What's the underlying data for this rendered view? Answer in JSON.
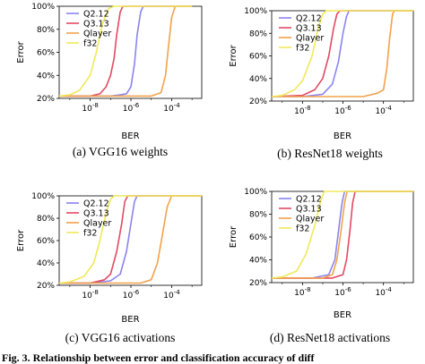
{
  "chart_data": [
    {
      "type": "line",
      "xlabel": "BER",
      "ylabel": "Error",
      "xscale": "log",
      "xlim": [
        3e-10,
        0.003
      ],
      "ylim": [
        0.2,
        1.0
      ],
      "xticks": [
        "10^{-8}",
        "10^{-6}",
        "10^{-4}"
      ],
      "yticks": [
        "20%",
        "40%",
        "60%",
        "80%",
        "100%"
      ],
      "legend_position": "top-left",
      "caption": "(a)  VGG16 weights",
      "series": [
        {
          "name": "Q2.12",
          "color": "#8b84ee",
          "points": [
            [
              3e-10,
              0.22
            ],
            [
              1e-07,
              0.22
            ],
            [
              3e-07,
              0.23
            ],
            [
              6e-07,
              0.24
            ],
            [
              1e-06,
              0.3
            ],
            [
              1.5e-06,
              0.5
            ],
            [
              2e-06,
              0.75
            ],
            [
              3e-06,
              0.95
            ],
            [
              4e-06,
              1.0
            ],
            [
              0.001,
              1.0
            ]
          ]
        },
        {
          "name": "Q3.13",
          "color": "#e24a62",
          "points": [
            [
              3e-10,
              0.22
            ],
            [
              1e-08,
              0.22
            ],
            [
              3e-08,
              0.24
            ],
            [
              6e-08,
              0.3
            ],
            [
              1e-07,
              0.4
            ],
            [
              1.5e-07,
              0.55
            ],
            [
              2e-07,
              0.75
            ],
            [
              3e-07,
              0.95
            ],
            [
              4e-07,
              1.0
            ],
            [
              0.001,
              1.0
            ]
          ]
        },
        {
          "name": "Qlayer",
          "color": "#f2a24c",
          "points": [
            [
              3e-10,
              0.22
            ],
            [
              1e-05,
              0.22
            ],
            [
              3e-05,
              0.25
            ],
            [
              5e-05,
              0.4
            ],
            [
              7e-05,
              0.65
            ],
            [
              0.0001,
              0.9
            ],
            [
              0.00015,
              1.0
            ],
            [
              0.001,
              1.0
            ]
          ]
        },
        {
          "name": "f32",
          "color": "#f0e95a",
          "points": [
            [
              3e-10,
              0.22
            ],
            [
              1e-09,
              0.23
            ],
            [
              3e-09,
              0.27
            ],
            [
              1e-08,
              0.4
            ],
            [
              2e-08,
              0.6
            ],
            [
              4e-08,
              0.85
            ],
            [
              8e-08,
              0.98
            ],
            [
              1.5e-07,
              1.0
            ],
            [
              0.001,
              1.0
            ]
          ]
        }
      ]
    },
    {
      "type": "line",
      "xlabel": "BER",
      "ylabel": "Error",
      "xscale": "log",
      "xlim": [
        3e-10,
        0.003
      ],
      "ylim": [
        0.2,
        1.0
      ],
      "xticks": [
        "10^{-8}",
        "10^{-6}",
        "10^{-4}"
      ],
      "yticks": [
        "20%",
        "40%",
        "60%",
        "80%",
        "100%"
      ],
      "legend_position": "top-left",
      "caption": "(b)  ResNet18 weights",
      "series": [
        {
          "name": "Q2.12",
          "color": "#8b84ee",
          "points": [
            [
              3e-10,
              0.24
            ],
            [
              1e-08,
              0.24
            ],
            [
              1e-07,
              0.26
            ],
            [
              3e-07,
              0.35
            ],
            [
              6e-07,
              0.55
            ],
            [
              1e-06,
              0.8
            ],
            [
              1.5e-06,
              0.95
            ],
            [
              2e-06,
              1.0
            ],
            [
              0.003,
              1.0
            ]
          ]
        },
        {
          "name": "Q3.13",
          "color": "#e24a62",
          "points": [
            [
              3e-10,
              0.24
            ],
            [
              1e-08,
              0.25
            ],
            [
              4e-08,
              0.3
            ],
            [
              1e-07,
              0.4
            ],
            [
              2e-07,
              0.6
            ],
            [
              3.5e-07,
              0.85
            ],
            [
              5e-07,
              0.97
            ],
            [
              7e-07,
              1.0
            ],
            [
              0.003,
              1.0
            ]
          ]
        },
        {
          "name": "Qlayer",
          "color": "#f2a24c",
          "points": [
            [
              3e-10,
              0.24
            ],
            [
              1e-05,
              0.24
            ],
            [
              5e-05,
              0.27
            ],
            [
              0.0001,
              0.3
            ],
            [
              0.00015,
              0.5
            ],
            [
              0.0002,
              0.75
            ],
            [
              0.00028,
              0.97
            ],
            [
              0.00035,
              1.0
            ],
            [
              0.003,
              1.0
            ]
          ]
        },
        {
          "name": "f32",
          "color": "#f0e95a",
          "points": [
            [
              3e-10,
              0.24
            ],
            [
              1e-09,
              0.25
            ],
            [
              4e-09,
              0.3
            ],
            [
              1e-08,
              0.38
            ],
            [
              3e-08,
              0.6
            ],
            [
              6e-08,
              0.85
            ],
            [
              1e-07,
              0.97
            ],
            [
              1.5e-07,
              1.0
            ],
            [
              0.003,
              1.0
            ]
          ]
        }
      ]
    },
    {
      "type": "line",
      "xlabel": "BER",
      "ylabel": "Error",
      "xscale": "log",
      "xlim": [
        3e-10,
        0.003
      ],
      "ylim": [
        0.2,
        1.0
      ],
      "xticks": [
        "10^{-8}",
        "10^{-6}",
        "10^{-4}"
      ],
      "yticks": [
        "20%",
        "40%",
        "60%",
        "80%",
        "100%"
      ],
      "legend_position": "top-left",
      "caption": "(c)  VGG16 activations",
      "series": [
        {
          "name": "Q2.12",
          "color": "#8b84ee",
          "points": [
            [
              3e-10,
              0.22
            ],
            [
              1e-08,
              0.22
            ],
            [
              1e-07,
              0.24
            ],
            [
              3e-07,
              0.3
            ],
            [
              6e-07,
              0.5
            ],
            [
              1e-06,
              0.75
            ],
            [
              1.5e-06,
              0.95
            ],
            [
              2e-06,
              1.0
            ],
            [
              0.003,
              1.0
            ]
          ]
        },
        {
          "name": "Q3.13",
          "color": "#e24a62",
          "points": [
            [
              3e-10,
              0.22
            ],
            [
              1e-08,
              0.22
            ],
            [
              5e-08,
              0.25
            ],
            [
              1e-07,
              0.3
            ],
            [
              2e-07,
              0.5
            ],
            [
              3.5e-07,
              0.75
            ],
            [
              5e-07,
              0.95
            ],
            [
              7e-07,
              1.0
            ],
            [
              0.003,
              1.0
            ]
          ]
        },
        {
          "name": "Qlayer",
          "color": "#f2a24c",
          "points": [
            [
              3e-10,
              0.22
            ],
            [
              3e-06,
              0.22
            ],
            [
              1e-05,
              0.25
            ],
            [
              2e-05,
              0.4
            ],
            [
              3.5e-05,
              0.65
            ],
            [
              6e-05,
              0.9
            ],
            [
              0.0001,
              1.0
            ],
            [
              0.003,
              1.0
            ]
          ]
        },
        {
          "name": "f32",
          "color": "#f0e95a",
          "points": [
            [
              3e-10,
              0.22
            ],
            [
              1e-09,
              0.23
            ],
            [
              5e-09,
              0.28
            ],
            [
              1.5e-08,
              0.4
            ],
            [
              3e-08,
              0.6
            ],
            [
              6e-08,
              0.85
            ],
            [
              1e-07,
              0.97
            ],
            [
              1.5e-07,
              1.0
            ],
            [
              0.003,
              1.0
            ]
          ]
        }
      ]
    },
    {
      "type": "line",
      "xlabel": "BER",
      "ylabel": "Error",
      "xscale": "log",
      "xlim": [
        3e-10,
        0.003
      ],
      "ylim": [
        0.2,
        1.0
      ],
      "xticks": [
        "10^{-8}",
        "10^{-6}",
        "10^{-4}"
      ],
      "yticks": [
        "20%",
        "40%",
        "60%",
        "80%",
        "100%"
      ],
      "legend_position": "top-left",
      "caption": "(d)  ResNet18 activations",
      "series": [
        {
          "name": "Q2.12",
          "color": "#8b84ee",
          "points": [
            [
              3e-10,
              0.24
            ],
            [
              3e-08,
              0.24
            ],
            [
              2e-07,
              0.27
            ],
            [
              4e-07,
              0.4
            ],
            [
              6e-07,
              0.65
            ],
            [
              9e-07,
              0.9
            ],
            [
              1.2e-06,
              1.0
            ],
            [
              0.003,
              1.0
            ]
          ]
        },
        {
          "name": "Q3.13",
          "color": "#e24a62",
          "points": [
            [
              3e-10,
              0.24
            ],
            [
              3e-07,
              0.24
            ],
            [
              1e-06,
              0.27
            ],
            [
              1.5e-06,
              0.4
            ],
            [
              2.2e-06,
              0.65
            ],
            [
              3e-06,
              0.9
            ],
            [
              4e-06,
              1.0
            ],
            [
              0.003,
              1.0
            ]
          ]
        },
        {
          "name": "Qlayer",
          "color": "#f2a24c",
          "points": [
            [
              3e-10,
              0.24
            ],
            [
              1e-07,
              0.24
            ],
            [
              3e-07,
              0.27
            ],
            [
              5e-07,
              0.4
            ],
            [
              8e-07,
              0.65
            ],
            [
              1.2e-06,
              0.9
            ],
            [
              1.6e-06,
              1.0
            ],
            [
              0.003,
              1.0
            ]
          ]
        },
        {
          "name": "f32",
          "color": "#f0e95a",
          "points": [
            [
              3e-10,
              0.24
            ],
            [
              1e-09,
              0.25
            ],
            [
              5e-09,
              0.3
            ],
            [
              1.5e-08,
              0.45
            ],
            [
              4e-08,
              0.7
            ],
            [
              8e-08,
              0.92
            ],
            [
              1.2e-07,
              1.0
            ],
            [
              0.003,
              1.0
            ]
          ]
        }
      ]
    }
  ],
  "bottom_caption": "Fig. 3.  Relationship  between  error  and  classification  accuracy  of  diff"
}
